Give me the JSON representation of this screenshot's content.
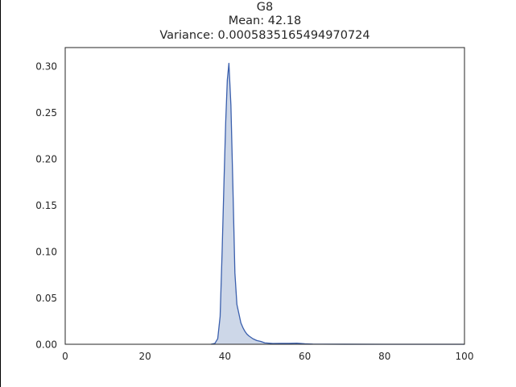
{
  "chart_data": {
    "type": "area",
    "title_lines": [
      "G8",
      "Mean: 42.18",
      "Variance: 0.0005835165494970724"
    ],
    "xlabel": "",
    "ylabel": "",
    "xlim": [
      0,
      100
    ],
    "ylim": [
      0,
      0.32
    ],
    "x_ticks": [
      0,
      20,
      40,
      60,
      80,
      100
    ],
    "x_tick_labels": [
      "0",
      "20",
      "40",
      "60",
      "80",
      "100"
    ],
    "y_ticks": [
      0,
      0.05,
      0.1,
      0.15,
      0.2,
      0.25,
      0.3
    ],
    "y_tick_labels": [
      "0.00",
      "0.05",
      "0.10",
      "0.15",
      "0.20",
      "0.25",
      "0.30"
    ],
    "grid": false,
    "legend": "none",
    "line_color": "#3a5fad",
    "fill_color": "#cdd7e8",
    "series": [
      {
        "x": [
          36.5,
          37.5,
          38.2,
          38.8,
          39.3,
          39.8,
          40.2,
          40.6,
          41.0,
          41.5,
          42.0,
          42.5,
          43.0,
          43.5,
          44.0,
          44.5,
          45.0,
          45.5,
          46.0,
          47.0,
          48.0,
          49.0,
          50.0,
          52.0,
          54.0,
          56.0,
          58.0,
          60.0,
          62.0,
          64.0,
          70.0,
          80.0,
          90.0,
          100.0
        ],
        "y": [
          0.0,
          0.001,
          0.006,
          0.03,
          0.1,
          0.18,
          0.24,
          0.285,
          0.303,
          0.258,
          0.17,
          0.077,
          0.043,
          0.033,
          0.023,
          0.018,
          0.014,
          0.011,
          0.009,
          0.006,
          0.004,
          0.003,
          0.0015,
          0.0008,
          0.001,
          0.0009,
          0.0012,
          0.0005,
          0.0002,
          0.0001,
          5e-05,
          2e-05,
          1e-05,
          0.0
        ]
      }
    ]
  }
}
